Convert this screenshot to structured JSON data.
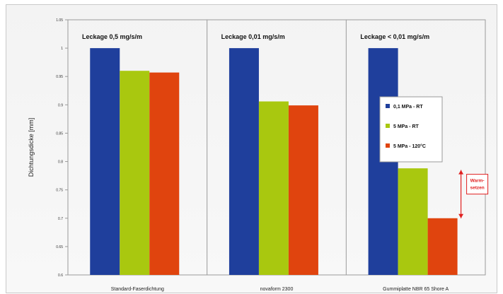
{
  "chart_data": {
    "type": "bar",
    "ylabel": "Dichtungsdicke [mm]",
    "ylim": [
      0.6,
      1.05
    ],
    "yticks": [
      0.6,
      0.65,
      0.7,
      0.75,
      0.8,
      0.85,
      0.9,
      0.95,
      1,
      1.05
    ],
    "ytick_labels": [
      "0.6",
      "0.65",
      "0.7",
      "0.75",
      "0.8",
      "0.85",
      "0.9",
      "0.95",
      "1",
      "1.05"
    ],
    "categories": [
      "Standard-Faserdichtung",
      "novaform 2300",
      "Gummiplatte NBR 65 Shore A"
    ],
    "group_labels": [
      "Leckage 0,5 mg/s/m",
      "Leckage 0,01 mg/s/m",
      "Leckage < 0,01 mg/s/m"
    ],
    "series": [
      {
        "name": "0,1 MPa - RT",
        "color": "#1f3f9c",
        "values": [
          1.0,
          1.0,
          1.0
        ]
      },
      {
        "name": "5 MPa - RT",
        "color": "#a9c80f",
        "values": [
          0.96,
          0.906,
          0.788
        ]
      },
      {
        "name": "5 MPa - 120°C",
        "color": "#e0440e",
        "values": [
          0.957,
          0.899,
          0.7
        ]
      }
    ],
    "legend_position": "right",
    "grid": false,
    "annotation": {
      "text_lines": [
        "Warm-",
        "setzen"
      ],
      "color": "#e02020"
    }
  }
}
